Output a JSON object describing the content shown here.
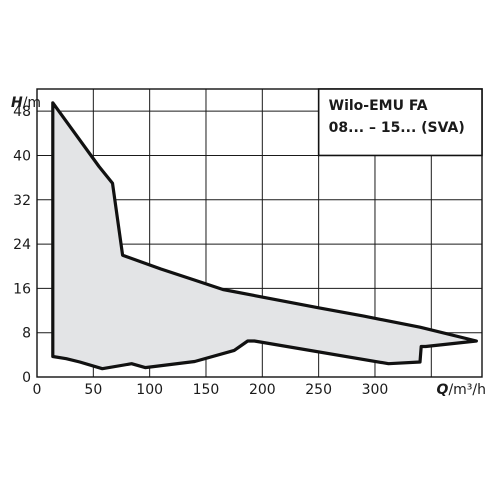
{
  "chart_data": {
    "type": "area",
    "title": [
      "Wilo-EMU FA",
      "08... – 15... (SVA)"
    ],
    "y_axis": {
      "symbol": "H",
      "unit": "/m",
      "ticks": [
        0,
        8,
        16,
        24,
        32,
        40,
        48
      ],
      "range": [
        0,
        52
      ]
    },
    "x_axis": {
      "symbol": "Q",
      "unit": "/m³/h",
      "ticks": [
        0,
        50,
        100,
        150,
        200,
        250,
        300
      ],
      "range": [
        0,
        395
      ]
    },
    "grid": true,
    "colors": {
      "fill": "#e3e4e6",
      "outline": "#111111",
      "grid": "#1a1a1a"
    },
    "series": [
      {
        "points": [
          [
            14,
            49.5
          ],
          [
            55,
            38
          ],
          [
            67,
            35
          ],
          [
            76,
            22
          ],
          [
            110,
            19.5
          ],
          [
            140,
            17.5
          ],
          [
            165,
            15.8
          ],
          [
            250,
            12.5
          ],
          [
            290,
            11
          ],
          [
            340,
            9
          ],
          [
            390,
            6.5
          ],
          [
            345,
            5.5
          ],
          [
            341,
            5.5
          ],
          [
            340,
            2.7
          ],
          [
            312,
            2.4
          ],
          [
            193,
            6.5
          ],
          [
            187,
            6.5
          ],
          [
            175,
            4.8
          ],
          [
            140,
            2.8
          ],
          [
            96,
            1.7
          ],
          [
            84,
            2.4
          ],
          [
            58,
            1.5
          ],
          [
            38,
            2.7
          ],
          [
            26,
            3.3
          ],
          [
            14,
            3.7
          ]
        ]
      }
    ]
  }
}
